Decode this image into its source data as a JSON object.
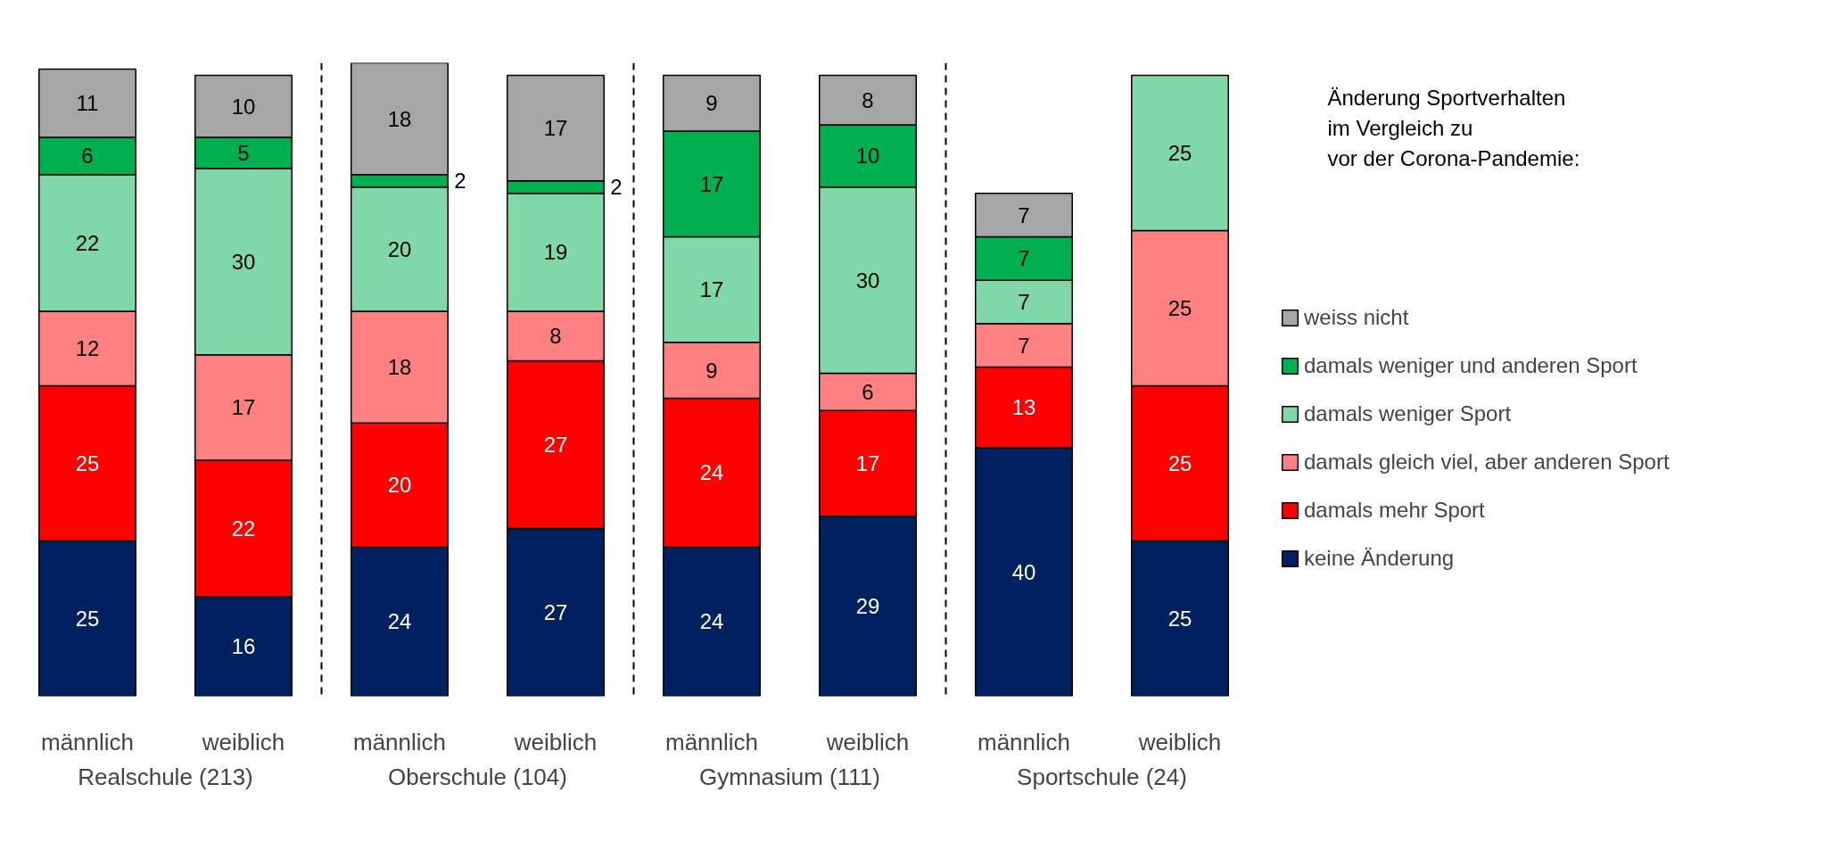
{
  "chart_data": {
    "type": "bar",
    "stacked": true,
    "data_labels": true,
    "tick_labels": "x",
    "grid": false,
    "legend": "right",
    "legend_title": "Änderung Sportverhalten\nim Vergleich zu\nvor der Corona-Pandemie:",
    "categories": [
      "männlich",
      "weiblich",
      "männlich",
      "weiblich",
      "männlich",
      "weiblich",
      "männlich",
      "weiblich"
    ],
    "annotations": [
      "Realschule (213)",
      "Oberschule (104)",
      "Gymnasium (111)",
      "Sportschule (24)"
    ],
    "series": [
      {
        "name": "keine Änderung",
        "color": "#002060",
        "values": [
          25,
          16,
          24,
          27,
          24,
          29,
          40,
          25
        ]
      },
      {
        "name": "damals mehr Sport",
        "color": "#ff0000",
        "values": [
          25,
          22,
          20,
          27,
          24,
          17,
          13,
          25
        ]
      },
      {
        "name": "damals gleich viel, aber anderen Sport",
        "color": "#ff8080",
        "values": [
          12,
          17,
          18,
          8,
          9,
          6,
          7,
          25
        ]
      },
      {
        "name": "damals weniger Sport",
        "color": "#80d8a8",
        "values": [
          22,
          30,
          20,
          19,
          17,
          30,
          7,
          25
        ]
      },
      {
        "name": "damals weniger und anderen Sport",
        "color": "#00b050",
        "values": [
          6,
          5,
          2,
          2,
          17,
          10,
          7,
          null
        ]
      },
      {
        "name": "weiss nicht",
        "color": "#a6a6a6",
        "values": [
          11,
          10,
          18,
          17,
          9,
          8,
          7,
          null
        ]
      }
    ]
  }
}
